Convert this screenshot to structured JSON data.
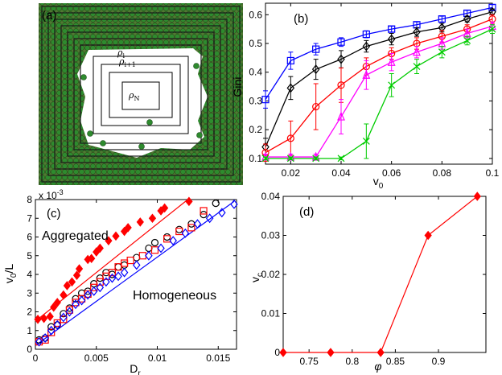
{
  "panel_a": {
    "label": "(a)",
    "rho_labels": [
      "ρ_i",
      "ρ_{i+1}",
      "ρ_N"
    ],
    "particle_color": "#1f8a1f",
    "background_color": "#6b8e3f"
  },
  "chart_data": [
    {
      "id": "b",
      "type": "line",
      "panel_label": "(b)",
      "xlabel": "v0",
      "ylabel": "Gini",
      "xlim": [
        0.01,
        0.1
      ],
      "ylim": [
        0.08,
        0.64
      ],
      "xticks": [
        0.02,
        0.04,
        0.06,
        0.08,
        0.1
      ],
      "xtick_labels": [
        "0.02",
        "0.04",
        "0.06",
        "0.08",
        "0.1"
      ],
      "yticks": [
        0.1,
        0.2,
        0.3,
        0.4,
        0.5,
        0.6
      ],
      "ytick_labels": [
        "0.1",
        "0.2",
        "0.3",
        "0.4",
        "0.5",
        "0.6"
      ],
      "x": [
        0.01,
        0.02,
        0.03,
        0.04,
        0.05,
        0.06,
        0.07,
        0.08,
        0.09,
        0.1
      ],
      "series": [
        {
          "color": "#0000ff",
          "marker": "square",
          "values": [
            0.305,
            0.44,
            0.48,
            0.505,
            0.532,
            0.55,
            0.565,
            0.585,
            0.605,
            0.625
          ],
          "errors": [
            0.03,
            0.03,
            0.02,
            0.015,
            0.012,
            0.01,
            0.01,
            0.01,
            0.01,
            0.01
          ]
        },
        {
          "color": "#000000",
          "marker": "diamond",
          "values": [
            0.14,
            0.345,
            0.41,
            0.445,
            0.49,
            0.515,
            0.54,
            0.555,
            0.585,
            0.61
          ],
          "errors": [
            0.03,
            0.04,
            0.035,
            0.03,
            0.02,
            0.02,
            0.015,
            0.015,
            0.01,
            0.01
          ]
        },
        {
          "color": "#ff0000",
          "marker": "circle",
          "values": [
            0.12,
            0.17,
            0.28,
            0.355,
            0.42,
            0.465,
            0.5,
            0.525,
            0.55,
            0.585
          ],
          "errors": [
            0.03,
            0.06,
            0.08,
            0.06,
            0.03,
            0.02,
            0.02,
            0.02,
            0.015,
            0.015
          ]
        },
        {
          "color": "#ff00ff",
          "marker": "triangle",
          "values": [
            0.105,
            0.105,
            0.105,
            0.245,
            0.39,
            0.435,
            0.47,
            0.5,
            0.535,
            0.56
          ],
          "errors": [
            0.01,
            0.01,
            0.01,
            0.06,
            0.05,
            0.03,
            0.02,
            0.02,
            0.015,
            0.015
          ]
        },
        {
          "color": "#00cc00",
          "marker": "x",
          "values": [
            0.1,
            0.1,
            0.1,
            0.1,
            0.16,
            0.355,
            0.42,
            0.47,
            0.51,
            0.55
          ],
          "errors": [
            0.005,
            0.005,
            0.005,
            0.005,
            0.06,
            0.04,
            0.025,
            0.02,
            0.015,
            0.015
          ]
        }
      ]
    },
    {
      "id": "c",
      "type": "scatter",
      "panel_label": "(c)",
      "xlabel": "D_r",
      "ylabel": "v_0/L",
      "y_multiplier": "x 10",
      "y_exponent": "-3",
      "xlim": [
        0,
        0.0165
      ],
      "ylim": [
        0,
        8
      ],
      "xticks": [
        0,
        0.005,
        0.01,
        0.015
      ],
      "xtick_labels": [
        "0",
        "0.005",
        "0.01",
        "0.015"
      ],
      "yticks": [
        0,
        1,
        2,
        3,
        4,
        5,
        6,
        7,
        8
      ],
      "ytick_labels": [
        "0",
        "1",
        "2",
        "3",
        "4",
        "5",
        "6",
        "7",
        "8"
      ],
      "annotations": [
        "Aggregated",
        "Homogeneous"
      ],
      "fit_lines": [
        {
          "color": "#ff0000",
          "x": [
            0,
            0.0125
          ],
          "y": [
            1.5,
            8
          ]
        },
        {
          "color": "#0000ff",
          "x": [
            0,
            0.0163
          ],
          "y": [
            0.2,
            7.9
          ]
        }
      ],
      "series": [
        {
          "color": "#ff0000",
          "marker": "filled-diamond",
          "x": [
            0.0002,
            0.0007,
            0.0012,
            0.0015,
            0.0018,
            0.0023,
            0.0026,
            0.003,
            0.0034,
            0.0036,
            0.0043,
            0.0046,
            0.005,
            0.0053,
            0.006,
            0.0066,
            0.0073,
            0.0076,
            0.0086,
            0.0096,
            0.0103,
            0.0106,
            0.0126
          ],
          "y": [
            1.6,
            1.65,
            1.75,
            2.25,
            2.5,
            2.9,
            3.4,
            3.6,
            3.95,
            4.3,
            4.8,
            4.85,
            5.2,
            5.4,
            5.8,
            6.05,
            6.3,
            6.5,
            6.8,
            7.0,
            7.4,
            7.55,
            7.9
          ]
        },
        {
          "color": "#000000",
          "marker": "open-circle",
          "x": [
            0.0003,
            0.0008,
            0.0013,
            0.0018,
            0.0023,
            0.0028,
            0.0033,
            0.0038,
            0.0043,
            0.0048,
            0.0053,
            0.0058,
            0.0063,
            0.0068,
            0.0073,
            0.0083,
            0.0093,
            0.0098,
            0.0108,
            0.0118,
            0.0128,
            0.0138,
            0.0148
          ],
          "y": [
            0.5,
            0.6,
            1.2,
            1.3,
            1.9,
            2.2,
            2.7,
            3.0,
            3.1,
            3.5,
            3.8,
            4.1,
            4.0,
            4.4,
            4.5,
            4.9,
            5.4,
            5.7,
            6.0,
            6.4,
            6.7,
            7.2,
            7.8
          ]
        },
        {
          "color": "#ff0000",
          "marker": "open-square",
          "x": [
            0.0003,
            0.0008,
            0.0013,
            0.0018,
            0.0023,
            0.0028,
            0.0033,
            0.0038,
            0.0043,
            0.0048,
            0.0053,
            0.0058,
            0.0063,
            0.0068,
            0.0073,
            0.0078,
            0.0088,
            0.0098,
            0.0108,
            0.0118,
            0.0128,
            0.0138
          ],
          "y": [
            0.4,
            0.5,
            0.9,
            1.4,
            1.6,
            2.1,
            2.5,
            2.7,
            2.95,
            3.3,
            3.6,
            3.9,
            4.1,
            4.4,
            4.6,
            4.75,
            5.0,
            5.3,
            5.9,
            6.3,
            6.5,
            7.4
          ]
        },
        {
          "color": "#0000ff",
          "marker": "open-diamond",
          "x": [
            0.0003,
            0.0008,
            0.0013,
            0.0018,
            0.0023,
            0.0028,
            0.0033,
            0.0038,
            0.0043,
            0.0048,
            0.0053,
            0.0058,
            0.0063,
            0.0068,
            0.0073,
            0.0083,
            0.0093,
            0.0103,
            0.0113,
            0.0123,
            0.0133,
            0.0143,
            0.0153,
            0.0163
          ],
          "y": [
            0.4,
            0.6,
            1.0,
            1.3,
            1.7,
            2.0,
            2.4,
            2.6,
            2.9,
            3.1,
            3.3,
            3.6,
            3.8,
            3.9,
            4.1,
            4.5,
            5.0,
            5.4,
            5.8,
            6.2,
            6.7,
            7.0,
            7.3,
            7.75
          ]
        }
      ]
    },
    {
      "id": "d",
      "type": "line",
      "panel_label": "(d)",
      "xlabel": "φ",
      "ylabel": "v_c",
      "xlim": [
        0.72,
        0.955
      ],
      "ylim": [
        0,
        0.04
      ],
      "xticks": [
        0.75,
        0.8,
        0.85,
        0.9
      ],
      "xtick_labels": [
        "0.75",
        "0.8",
        "0.85",
        "0.9"
      ],
      "yticks": [
        0,
        0.01,
        0.02,
        0.03,
        0.04
      ],
      "ytick_labels": [
        "0",
        "0.01",
        "0.02",
        "0.03",
        "0.04"
      ],
      "series": [
        {
          "color": "#ff0000",
          "marker": "filled-diamond",
          "x": [
            0.72,
            0.775,
            0.833,
            0.888,
            0.945
          ],
          "values": [
            0,
            0,
            0,
            0.03,
            0.04
          ]
        }
      ]
    }
  ]
}
